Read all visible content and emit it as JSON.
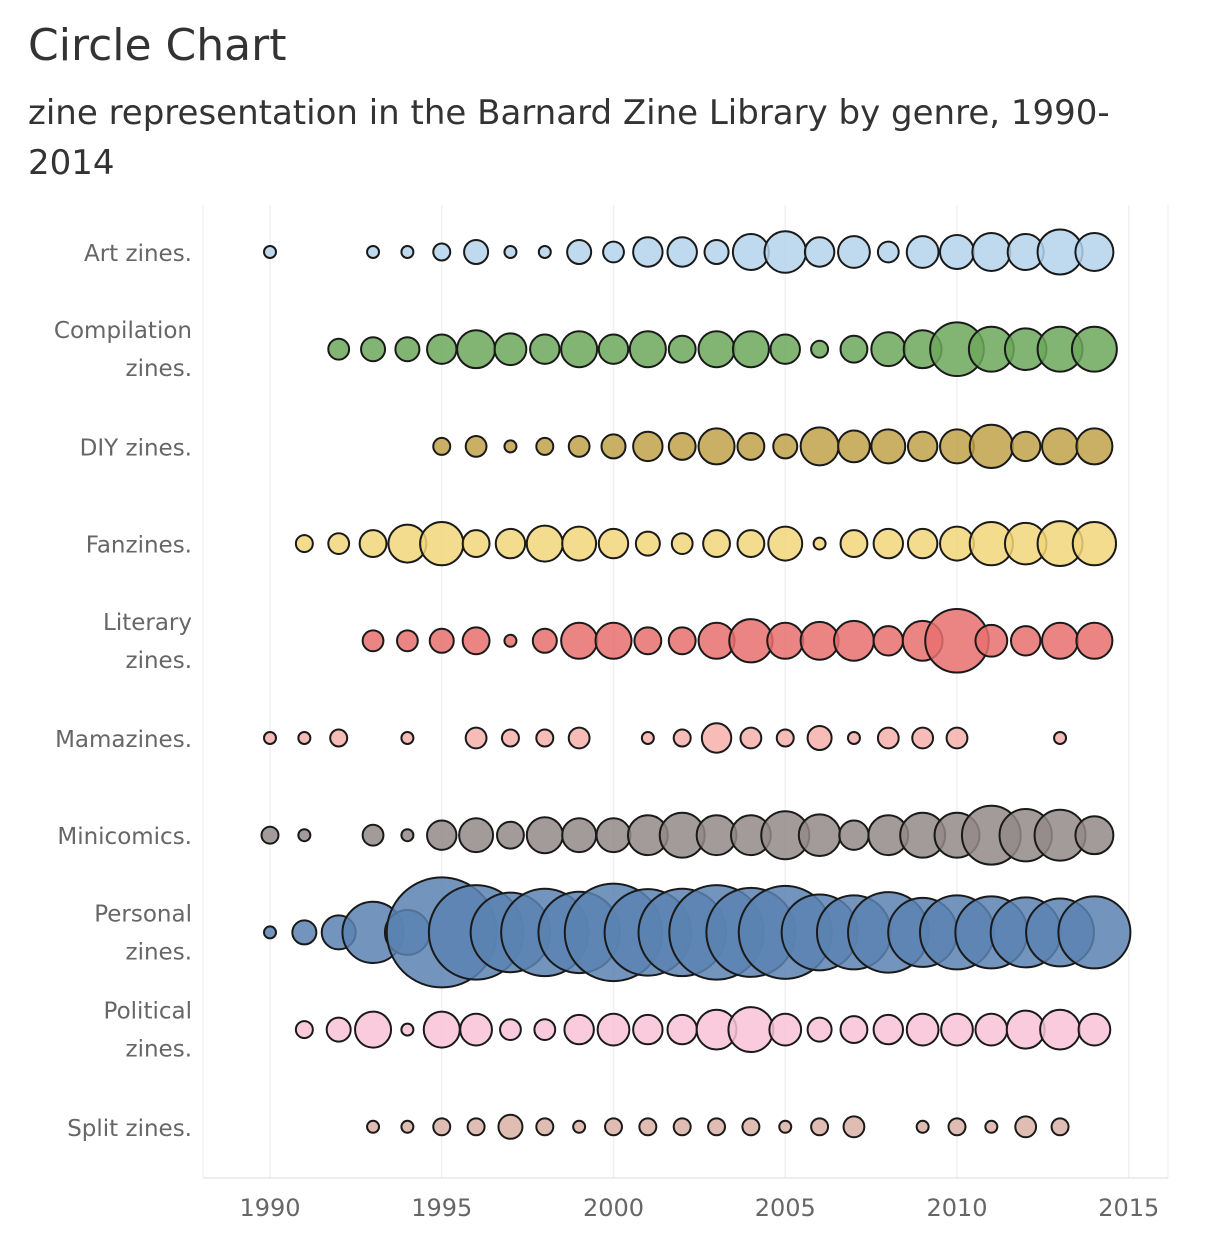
{
  "chart_data": {
    "type": "scatter",
    "title": "Circle Chart",
    "subtitle": "zine representation in the Barnard Zine Library by genre, 1990-2014",
    "xlabel": "",
    "ylabel": "",
    "xlim": [
      1988,
      2016
    ],
    "x_ticks": [
      "1990",
      "1995",
      "2000",
      "2005",
      "2010",
      "2015"
    ],
    "grid": "vertical",
    "legend": "none",
    "series": [
      {
        "label_lines": [
          "Art zines."
        ],
        "color": "#b4d4ec",
        "points": [
          [
            1990,
            1
          ],
          [
            1993,
            1
          ],
          [
            1994,
            1
          ],
          [
            1995,
            2
          ],
          [
            1996,
            4
          ],
          [
            1997,
            1
          ],
          [
            1998,
            1
          ],
          [
            1999,
            4
          ],
          [
            2000,
            3
          ],
          [
            2001,
            6
          ],
          [
            2002,
            6
          ],
          [
            2003,
            4
          ],
          [
            2004,
            9
          ],
          [
            2005,
            12
          ],
          [
            2006,
            6
          ],
          [
            2007,
            7
          ],
          [
            2008,
            3
          ],
          [
            2009,
            7
          ],
          [
            2010,
            8
          ],
          [
            2011,
            10
          ],
          [
            2012,
            9
          ],
          [
            2013,
            14
          ],
          [
            2014,
            10
          ]
        ]
      },
      {
        "label_lines": [
          "Compilation",
          "zines."
        ],
        "color": "#6ca85c",
        "points": [
          [
            1992,
            3
          ],
          [
            1993,
            4
          ],
          [
            1994,
            4
          ],
          [
            1995,
            6
          ],
          [
            1996,
            10
          ],
          [
            1997,
            7
          ],
          [
            1998,
            6
          ],
          [
            1999,
            9
          ],
          [
            2000,
            6
          ],
          [
            2001,
            9
          ],
          [
            2002,
            5
          ],
          [
            2003,
            9
          ],
          [
            2004,
            9
          ],
          [
            2005,
            6
          ],
          [
            2006,
            2
          ],
          [
            2007,
            5
          ],
          [
            2008,
            8
          ],
          [
            2009,
            10
          ],
          [
            2010,
            20
          ],
          [
            2011,
            14
          ],
          [
            2012,
            12
          ],
          [
            2013,
            14
          ],
          [
            2014,
            14
          ]
        ]
      },
      {
        "label_lines": [
          "DIY zines."
        ],
        "color": "#c0a24a",
        "points": [
          [
            1995,
            2
          ],
          [
            1996,
            3
          ],
          [
            1997,
            1
          ],
          [
            1998,
            2
          ],
          [
            1999,
            3
          ],
          [
            2000,
            4
          ],
          [
            2001,
            6
          ],
          [
            2002,
            5
          ],
          [
            2003,
            9
          ],
          [
            2004,
            5
          ],
          [
            2005,
            4
          ],
          [
            2006,
            10
          ],
          [
            2007,
            7
          ],
          [
            2008,
            8
          ],
          [
            2009,
            6
          ],
          [
            2010,
            8
          ],
          [
            2011,
            13
          ],
          [
            2012,
            6
          ],
          [
            2013,
            9
          ],
          [
            2014,
            9
          ]
        ]
      },
      {
        "label_lines": [
          "Fanzines."
        ],
        "color": "#f2d67a",
        "points": [
          [
            1991,
            2
          ],
          [
            1992,
            3
          ],
          [
            1993,
            5
          ],
          [
            1994,
            10
          ],
          [
            1995,
            13
          ],
          [
            1996,
            5
          ],
          [
            1997,
            6
          ],
          [
            1998,
            9
          ],
          [
            1999,
            8
          ],
          [
            2000,
            6
          ],
          [
            2001,
            4
          ],
          [
            2002,
            3
          ],
          [
            2003,
            5
          ],
          [
            2004,
            5
          ],
          [
            2005,
            8
          ],
          [
            2006,
            1
          ],
          [
            2007,
            5
          ],
          [
            2008,
            6
          ],
          [
            2009,
            6
          ],
          [
            2010,
            8
          ],
          [
            2011,
            13
          ],
          [
            2012,
            12
          ],
          [
            2013,
            14
          ],
          [
            2014,
            13
          ]
        ]
      },
      {
        "label_lines": [
          "Literary",
          "zines."
        ],
        "color": "#e8706e",
        "points": [
          [
            1993,
            3
          ],
          [
            1994,
            3
          ],
          [
            1995,
            4
          ],
          [
            1996,
            5
          ],
          [
            1997,
            1
          ],
          [
            1998,
            4
          ],
          [
            1999,
            9
          ],
          [
            2000,
            9
          ],
          [
            2001,
            5
          ],
          [
            2002,
            5
          ],
          [
            2003,
            9
          ],
          [
            2004,
            13
          ],
          [
            2005,
            9
          ],
          [
            2006,
            10
          ],
          [
            2007,
            11
          ],
          [
            2008,
            6
          ],
          [
            2009,
            11
          ],
          [
            2010,
            28
          ],
          [
            2011,
            7
          ],
          [
            2012,
            6
          ],
          [
            2013,
            9
          ],
          [
            2014,
            9
          ]
        ]
      },
      {
        "label_lines": [
          "Mamazines."
        ],
        "color": "#f6b0ac",
        "points": [
          [
            1990,
            1
          ],
          [
            1991,
            1
          ],
          [
            1992,
            2
          ],
          [
            1994,
            1
          ],
          [
            1996,
            3
          ],
          [
            1997,
            2
          ],
          [
            1998,
            2
          ],
          [
            1999,
            3
          ],
          [
            2001,
            1
          ],
          [
            2002,
            2
          ],
          [
            2003,
            6
          ],
          [
            2004,
            3
          ],
          [
            2005,
            2
          ],
          [
            2006,
            4
          ],
          [
            2007,
            1
          ],
          [
            2008,
            3
          ],
          [
            2009,
            3
          ],
          [
            2010,
            3
          ],
          [
            2013,
            1
          ]
        ]
      },
      {
        "label_lines": [
          "Minicomics."
        ],
        "color": "#938a88",
        "points": [
          [
            1990,
            2
          ],
          [
            1991,
            1
          ],
          [
            1993,
            3
          ],
          [
            1994,
            1
          ],
          [
            1995,
            6
          ],
          [
            1996,
            8
          ],
          [
            1997,
            5
          ],
          [
            1998,
            9
          ],
          [
            1999,
            8
          ],
          [
            2000,
            8
          ],
          [
            2001,
            11
          ],
          [
            2002,
            14
          ],
          [
            2003,
            11
          ],
          [
            2004,
            11
          ],
          [
            2005,
            16
          ],
          [
            2006,
            12
          ],
          [
            2007,
            6
          ],
          [
            2008,
            11
          ],
          [
            2009,
            14
          ],
          [
            2010,
            14
          ],
          [
            2011,
            24
          ],
          [
            2012,
            19
          ],
          [
            2013,
            18
          ],
          [
            2014,
            10
          ]
        ]
      },
      {
        "label_lines": [
          "Personal",
          "zines."
        ],
        "color": "#5b83b2",
        "points": [
          [
            1990,
            1
          ],
          [
            1991,
            4
          ],
          [
            1992,
            8
          ],
          [
            1993,
            26
          ],
          [
            1994,
            14
          ],
          [
            1995,
            84
          ],
          [
            1996,
            62
          ],
          [
            1997,
            44
          ],
          [
            1998,
            53
          ],
          [
            1999,
            46
          ],
          [
            2000,
            66
          ],
          [
            2001,
            52
          ],
          [
            2002,
            53
          ],
          [
            2003,
            62
          ],
          [
            2004,
            55
          ],
          [
            2005,
            60
          ],
          [
            2006,
            40
          ],
          [
            2007,
            38
          ],
          [
            2008,
            45
          ],
          [
            2009,
            33
          ],
          [
            2010,
            38
          ],
          [
            2011,
            36
          ],
          [
            2012,
            34
          ],
          [
            2013,
            32
          ],
          [
            2014,
            36
          ]
        ]
      },
      {
        "label_lines": [
          "Political",
          "zines."
        ],
        "color": "#f8c2d6",
        "points": [
          [
            1991,
            2
          ],
          [
            1992,
            4
          ],
          [
            1993,
            9
          ],
          [
            1994,
            1
          ],
          [
            1995,
            9
          ],
          [
            1996,
            7
          ],
          [
            1997,
            3
          ],
          [
            1998,
            3
          ],
          [
            1999,
            6
          ],
          [
            2000,
            7
          ],
          [
            2001,
            6
          ],
          [
            2002,
            6
          ],
          [
            2003,
            11
          ],
          [
            2004,
            14
          ],
          [
            2005,
            7
          ],
          [
            2006,
            4
          ],
          [
            2007,
            5
          ],
          [
            2008,
            6
          ],
          [
            2009,
            7
          ],
          [
            2010,
            7
          ],
          [
            2011,
            7
          ],
          [
            2012,
            10
          ],
          [
            2013,
            11
          ],
          [
            2014,
            7
          ]
        ]
      },
      {
        "label_lines": [
          "Split zines."
        ],
        "color": "#d9b2a4",
        "points": [
          [
            1993,
            1
          ],
          [
            1994,
            1
          ],
          [
            1995,
            2
          ],
          [
            1996,
            2
          ],
          [
            1997,
            4
          ],
          [
            1998,
            2
          ],
          [
            1999,
            1
          ],
          [
            2000,
            2
          ],
          [
            2001,
            2
          ],
          [
            2002,
            2
          ],
          [
            2003,
            2
          ],
          [
            2004,
            2
          ],
          [
            2005,
            1
          ],
          [
            2006,
            2
          ],
          [
            2007,
            3
          ],
          [
            2009,
            1
          ],
          [
            2010,
            2
          ],
          [
            2011,
            1
          ],
          [
            2012,
            3
          ],
          [
            2013,
            2
          ]
        ]
      }
    ]
  }
}
